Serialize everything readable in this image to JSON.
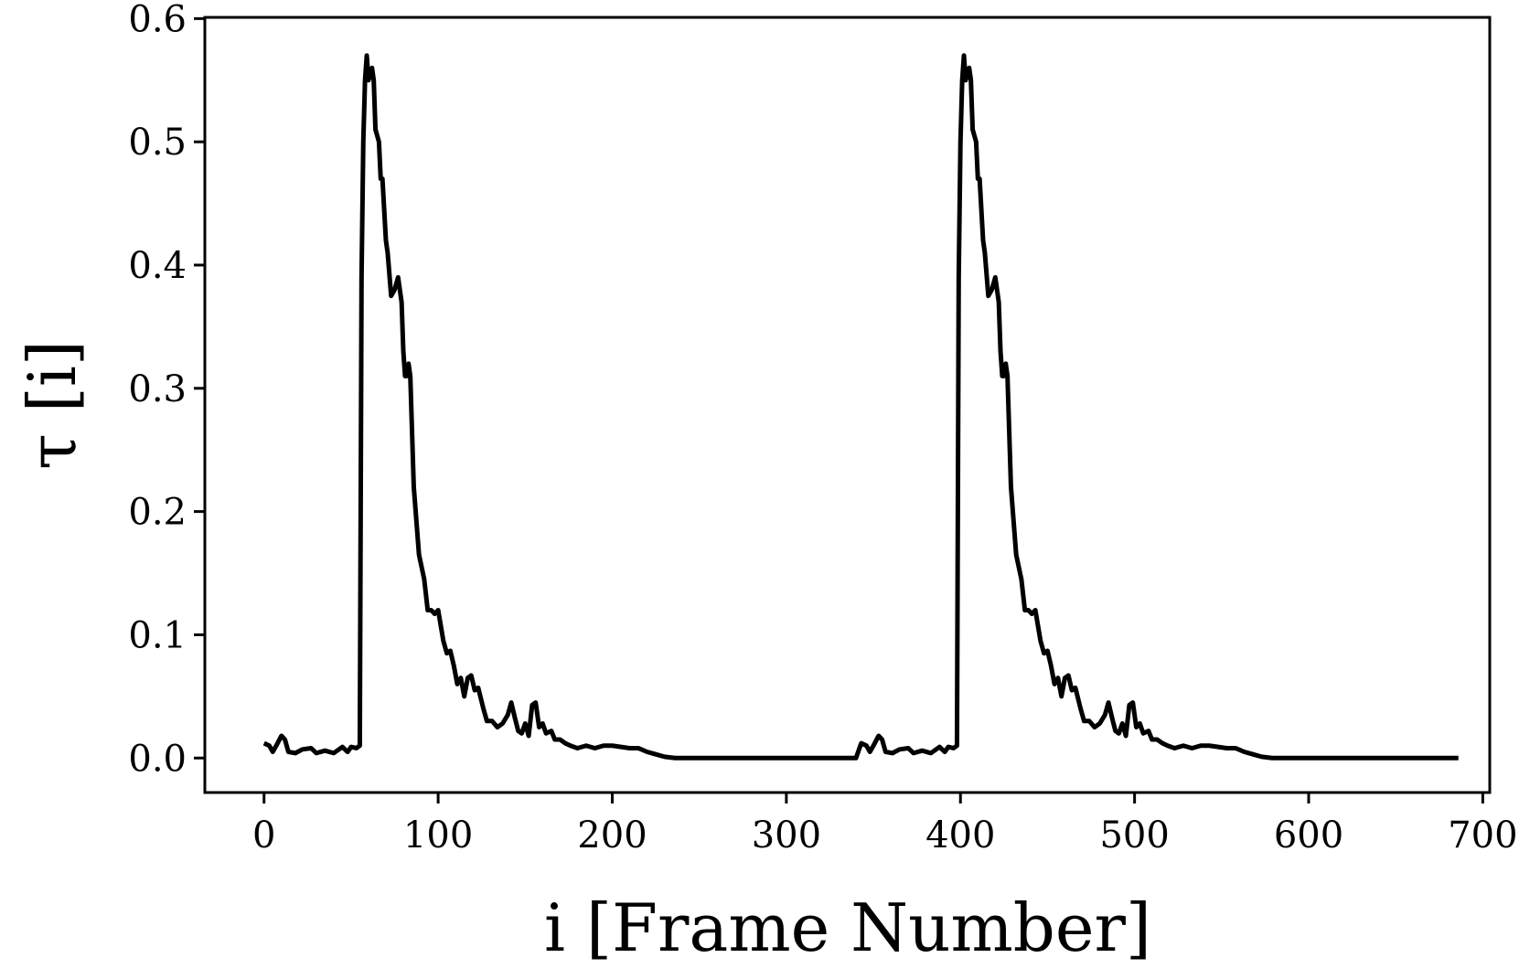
{
  "chart_data": {
    "type": "line",
    "xlabel": "i [Frame Number]",
    "ylabel": "τ [i]",
    "color": "#000000",
    "xlim": [
      -34,
      704
    ],
    "ylim": [
      -0.028,
      0.601
    ],
    "xticks": [
      0,
      100,
      200,
      300,
      400,
      500,
      600,
      700
    ],
    "yticks": [
      {
        "value": 0,
        "label": "0.0"
      },
      0.1,
      0.2,
      0.3,
      0.4,
      0.5,
      0.6
    ],
    "x": [
      0,
      3,
      5,
      7,
      10,
      12,
      14,
      18,
      22,
      27,
      30,
      35,
      40,
      45,
      48,
      50,
      53,
      55,
      56,
      57,
      58,
      59,
      60,
      62,
      63,
      64,
      66,
      67,
      68,
      70,
      71,
      73,
      75,
      77,
      79,
      80,
      81,
      82,
      83,
      84,
      86,
      89,
      92,
      94,
      96,
      98,
      100,
      103,
      105,
      107,
      109,
      111,
      113,
      115,
      117,
      119,
      121,
      123,
      126,
      128,
      131,
      134,
      137,
      140,
      142,
      144,
      146,
      148,
      150,
      152,
      154,
      156,
      158,
      160,
      162,
      165,
      167,
      170,
      173,
      176,
      180,
      185,
      190,
      195,
      200,
      210,
      215,
      220,
      225,
      230,
      236,
      340,
      343,
      346,
      348,
      350,
      353,
      355,
      357,
      361,
      365,
      370,
      373,
      378,
      383,
      388,
      391,
      393,
      396,
      398,
      399,
      400,
      401,
      402,
      403,
      405,
      406,
      407,
      409,
      410,
      411,
      413,
      414,
      416,
      418,
      420,
      422,
      423,
      424,
      425,
      426,
      427,
      429,
      432,
      435,
      437,
      439,
      441,
      443,
      446,
      448,
      450,
      452,
      454,
      456,
      458,
      460,
      462,
      464,
      466,
      469,
      471,
      474,
      477,
      480,
      483,
      485,
      487,
      489,
      491,
      493,
      495,
      497,
      499,
      501,
      503,
      505,
      508,
      510,
      513,
      516,
      519,
      523,
      528,
      533,
      538,
      543,
      553,
      558,
      563,
      568,
      573,
      579,
      686
    ],
    "values": [
      0.012,
      0.01,
      0.005,
      0.01,
      0.018,
      0.015,
      0.005,
      0.004,
      0.007,
      0.008,
      0.004,
      0.006,
      0.004,
      0.009,
      0.005,
      0.009,
      0.008,
      0.01,
      0.39,
      0.5,
      0.55,
      0.57,
      0.55,
      0.56,
      0.55,
      0.51,
      0.5,
      0.47,
      0.47,
      0.42,
      0.41,
      0.375,
      0.38,
      0.39,
      0.37,
      0.33,
      0.31,
      0.31,
      0.32,
      0.31,
      0.22,
      0.165,
      0.145,
      0.12,
      0.12,
      0.117,
      0.12,
      0.095,
      0.085,
      0.087,
      0.075,
      0.06,
      0.065,
      0.05,
      0.065,
      0.067,
      0.055,
      0.057,
      0.04,
      0.03,
      0.03,
      0.025,
      0.028,
      0.035,
      0.045,
      0.033,
      0.022,
      0.02,
      0.028,
      0.018,
      0.043,
      0.045,
      0.025,
      0.028,
      0.02,
      0.022,
      0.015,
      0.015,
      0.012,
      0.01,
      0.008,
      0.01,
      0.008,
      0.01,
      0.01,
      0.008,
      0.008,
      0.005,
      0.003,
      0.001,
      0,
      0,
      0.012,
      0.01,
      0.005,
      0.01,
      0.018,
      0.015,
      0.005,
      0.004,
      0.007,
      0.008,
      0.004,
      0.006,
      0.004,
      0.009,
      0.005,
      0.009,
      0.008,
      0.01,
      0.39,
      0.5,
      0.55,
      0.57,
      0.55,
      0.56,
      0.55,
      0.51,
      0.5,
      0.47,
      0.47,
      0.42,
      0.41,
      0.375,
      0.38,
      0.39,
      0.37,
      0.33,
      0.31,
      0.31,
      0.32,
      0.31,
      0.22,
      0.165,
      0.145,
      0.12,
      0.12,
      0.117,
      0.12,
      0.095,
      0.085,
      0.087,
      0.075,
      0.06,
      0.065,
      0.05,
      0.065,
      0.067,
      0.055,
      0.057,
      0.04,
      0.03,
      0.03,
      0.025,
      0.028,
      0.035,
      0.045,
      0.033,
      0.022,
      0.02,
      0.028,
      0.018,
      0.043,
      0.045,
      0.025,
      0.028,
      0.02,
      0.022,
      0.015,
      0.015,
      0.012,
      0.01,
      0.008,
      0.01,
      0.008,
      0.01,
      0.01,
      0.008,
      0.008,
      0.005,
      0.003,
      0.001,
      0,
      0
    ]
  }
}
